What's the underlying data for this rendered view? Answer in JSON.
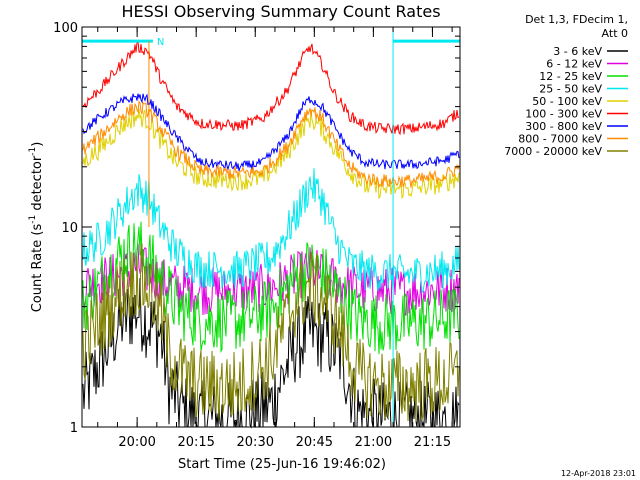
{
  "chart_data": {
    "type": "line",
    "title": "HESSI Observing Summary Count Rates",
    "xlabel": "Start Time (25-Jun-16 19:46:02)",
    "ylabel_main": "Count Rate (s",
    "ylabel_sup1": "-1",
    "ylabel_mid": " detector",
    "ylabel_sup2": "-1",
    "ylabel_end": ")",
    "yscale": "log",
    "ylim": [
      1,
      100
    ],
    "xlim_minutes": [
      0,
      96
    ],
    "x_ticks": [
      {
        "min": 14,
        "label": "20:00"
      },
      {
        "min": 29,
        "label": "20:15"
      },
      {
        "min": 44,
        "label": "20:30"
      },
      {
        "min": 59,
        "label": "20:45"
      },
      {
        "min": 74,
        "label": "21:00"
      },
      {
        "min": 89,
        "label": "21:15"
      }
    ],
    "y_tick_labels": [
      {
        "value": 1,
        "label": "1"
      },
      {
        "value": 10,
        "label": "10"
      },
      {
        "value": 100,
        "label": "100"
      }
    ],
    "legend_header": [
      "Det 1,3, FDecim 1,",
      "Att 0"
    ],
    "legend_position": "right",
    "series": [
      {
        "name": "3 - 6 keV",
        "color": "#000000",
        "minutes": [
          0,
          10,
          14,
          17,
          20,
          22,
          26,
          30,
          40,
          48,
          54,
          58,
          62,
          66,
          70,
          76,
          84,
          92,
          96
        ],
        "values": [
          1.4,
          3.4,
          3.9,
          3.3,
          2.9,
          1.6,
          1.2,
          1.1,
          1.1,
          1.3,
          2.5,
          3.0,
          2.8,
          2.2,
          1.2,
          1.1,
          1.1,
          1.1,
          1.1
        ]
      },
      {
        "name": "6 - 12 keV",
        "color": "#e000e0",
        "minutes": [
          0,
          10,
          14,
          17,
          20,
          24,
          30,
          40,
          48,
          54,
          58,
          62,
          66,
          70,
          76,
          84,
          92,
          96
        ],
        "values": [
          5.1,
          5.8,
          6.4,
          5.9,
          5.4,
          5.0,
          4.8,
          4.8,
          5.0,
          5.6,
          6.1,
          5.7,
          5.2,
          4.9,
          4.8,
          4.8,
          4.9,
          5.0
        ]
      },
      {
        "name": "12 - 25 keV",
        "color": "#00e000",
        "minutes": [
          0,
          10,
          14,
          17,
          20,
          24,
          30,
          40,
          48,
          54,
          58,
          62,
          66,
          70,
          76,
          84,
          92,
          96
        ],
        "values": [
          4.0,
          7.2,
          8.0,
          7.0,
          5.5,
          4.0,
          3.4,
          3.4,
          3.9,
          5.5,
          6.4,
          5.6,
          4.4,
          3.5,
          3.3,
          3.3,
          3.5,
          3.7
        ]
      },
      {
        "name": "25 - 50 keV",
        "color": "#00e8f0",
        "minutes": [
          0,
          5,
          10,
          14,
          17,
          20,
          24,
          30,
          40,
          48,
          54,
          58,
          61,
          64,
          68,
          72,
          76,
          84,
          92,
          96
        ],
        "values": [
          7.5,
          8.8,
          12,
          15.5,
          14,
          10,
          7.5,
          6.2,
          6.1,
          7.0,
          11,
          16.5,
          14,
          9.0,
          6.5,
          6.0,
          5.9,
          5.8,
          6.1,
          6.6
        ]
      },
      {
        "name": "50 - 100 keV",
        "color": "#e0d000",
        "minutes": [
          0,
          5,
          10,
          14,
          17,
          20,
          24,
          30,
          40,
          46,
          52,
          56,
          58,
          61,
          64,
          68,
          72,
          76,
          84,
          92,
          96
        ],
        "values": [
          21,
          25,
          32,
          36,
          34,
          27,
          21,
          17.5,
          17,
          17.5,
          23,
          31,
          35,
          31,
          25,
          19,
          16,
          15.5,
          15.5,
          16.5,
          18
        ]
      },
      {
        "name": "100 - 300 keV",
        "color": "#ff0000",
        "minutes": [
          0,
          5,
          10,
          14,
          17,
          20,
          24,
          30,
          40,
          46,
          52,
          56,
          58,
          61,
          64,
          68,
          72,
          76,
          84,
          92,
          96
        ],
        "values": [
          40,
          50,
          65,
          80,
          75,
          55,
          40,
          33,
          32,
          35,
          48,
          70,
          80,
          65,
          47,
          36,
          32,
          31,
          31,
          33,
          38
        ]
      },
      {
        "name": "300 - 800 keV",
        "color": "#0000ff",
        "minutes": [
          0,
          5,
          10,
          14,
          17,
          20,
          24,
          30,
          40,
          46,
          52,
          56,
          58,
          61,
          64,
          68,
          72,
          76,
          84,
          92,
          96
        ],
        "values": [
          30,
          36,
          42,
          45,
          43,
          36,
          28,
          21,
          20,
          21,
          28,
          40,
          44,
          40,
          32,
          24,
          21,
          20.5,
          20.5,
          21.5,
          23.5
        ]
      },
      {
        "name": "800 - 7000 keV",
        "color": "#ff8c00",
        "minutes": [
          0,
          5,
          10,
          14,
          17,
          20,
          24,
          30,
          40,
          46,
          52,
          56,
          58,
          61,
          64,
          68,
          72,
          76,
          84,
          92,
          96
        ],
        "values": [
          24,
          29,
          36,
          40,
          38,
          31,
          24,
          19,
          18.5,
          19,
          25,
          35,
          39,
          35,
          27,
          20,
          17.5,
          17,
          17,
          18,
          20
        ]
      },
      {
        "name": "7000 - 20000 keV",
        "color": "#808000",
        "minutes": [
          0,
          10,
          14,
          17,
          20,
          22,
          26,
          30,
          40,
          48,
          54,
          58,
          62,
          66,
          70,
          76,
          84,
          92,
          96
        ],
        "values": [
          2.5,
          4.8,
          5.6,
          5.0,
          3.8,
          2.4,
          1.8,
          1.6,
          1.6,
          2.2,
          4.2,
          5.1,
          4.3,
          2.9,
          1.8,
          1.6,
          1.6,
          1.7,
          1.8
        ]
      }
    ],
    "annotations": {
      "night_marker_label": "N",
      "night_intervals_minutes": [
        [
          0,
          18
        ],
        [
          79,
          96
        ]
      ],
      "saa_lines_minutes": [
        79,
        96
      ]
    },
    "timestamp": "12-Apr-2018 23:01"
  }
}
